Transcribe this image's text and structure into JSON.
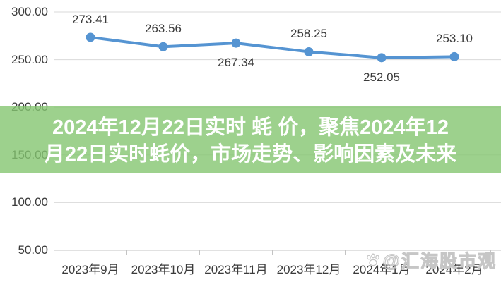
{
  "overlay": {
    "title_line1": "2024年12月22日实时 蚝 价，聚焦2024年12",
    "title_line2": "月22日实时蚝价，市场走势、影响因素及未来",
    "full_title": "2024年12月22日实时 蚝 价，聚焦2024年12月22日实时蚝价，市场走势、影响因素及未来",
    "band_color": "rgba(133,197,112,0.8)",
    "text_color": "#ffffff"
  },
  "watermark": {
    "icon": "paw-icon",
    "text": "@汇海股市观"
  },
  "chart_data": {
    "type": "line",
    "title": "",
    "xlabel": "",
    "ylabel": "",
    "categories": [
      "2023年9月",
      "2023年10月",
      "2023年11月",
      "2023年12月",
      "2024年1月",
      "2024年2月"
    ],
    "values": [
      273.41,
      263.56,
      267.34,
      258.25,
      252.05,
      253.1
    ],
    "data_labels": [
      "273.41",
      "263.56",
      "267.34",
      "258.25",
      "252.05",
      "253.10"
    ],
    "data_label_positions": [
      "above",
      "above",
      "below",
      "above",
      "below",
      "above"
    ],
    "ylim": [
      50,
      300
    ],
    "y_ticks": [
      300,
      250,
      200,
      150,
      100,
      50
    ],
    "y_tick_labels": [
      "300.00",
      "250.00",
      "200.00",
      "150.00",
      "100.00",
      "50.00"
    ],
    "grid": true,
    "legend": "none",
    "line_color": "#5594d2",
    "marker_color": "#5594d2",
    "gridline_color": "#d9d9d9",
    "axis_color": "#c3c3c3",
    "label_color": "#3b3b3b"
  }
}
